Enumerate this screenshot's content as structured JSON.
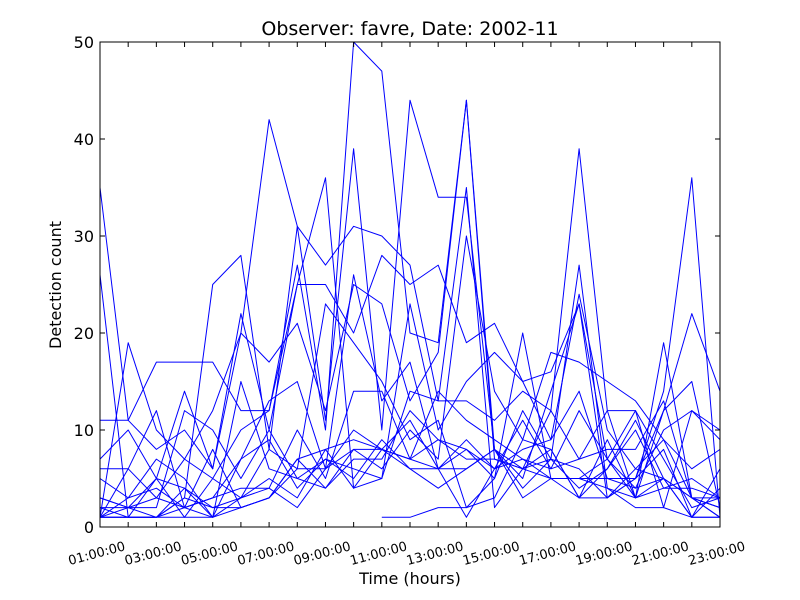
{
  "chart_data": {
    "type": "line",
    "title": "Observer: favre, Date: 2002-11",
    "xlabel": "Time (hours)",
    "ylabel": "Detection count",
    "ylim": [
      0,
      50
    ],
    "yticks": [
      "0",
      "10",
      "20",
      "30",
      "40",
      "50"
    ],
    "x": [
      "01:00:00",
      "02:00:00",
      "03:00:00",
      "04:00:00",
      "05:00:00",
      "06:00:00",
      "07:00:00",
      "08:00:00",
      "09:00:00",
      "10:00:00",
      "11:00:00",
      "12:00:00",
      "13:00:00",
      "14:00:00",
      "15:00:00",
      "16:00:00",
      "17:00:00",
      "18:00:00",
      "19:00:00",
      "20:00:00",
      "21:00:00",
      "22:00:00",
      "23:00:00"
    ],
    "xtick_labels": [
      "01:00:00",
      "03:00:00",
      "05:00:00",
      "07:00:00",
      "09:00:00",
      "11:00:00",
      "13:00:00",
      "15:00:00",
      "17:00:00",
      "19:00:00",
      "21:00:00",
      "23:00:00"
    ],
    "grid": false,
    "line_color": "#0000ff",
    "series": [
      {
        "values": [
          35,
          11,
          17,
          17,
          17,
          12,
          12,
          27,
          10,
          50,
          47,
          20,
          19,
          44,
          7,
          6,
          12,
          39,
          12,
          3,
          5,
          3,
          3
        ]
      },
      {
        "values": [
          26,
          1,
          1,
          3,
          25,
          28,
          8,
          31,
          11,
          39,
          10,
          44,
          34,
          34,
          8,
          3,
          5,
          3,
          3,
          5,
          14,
          36,
          1
        ]
      },
      {
        "values": [
          11,
          11,
          8,
          10,
          6,
          22,
          10,
          25,
          25,
          20,
          28,
          25,
          27,
          19,
          21,
          15,
          9,
          24,
          10,
          6,
          5,
          1,
          1
        ]
      },
      {
        "values": [
          1,
          19,
          10,
          7,
          12,
          20,
          42,
          31,
          27,
          31,
          30,
          27,
          13,
          35,
          2,
          6,
          7,
          27,
          4,
          3,
          12,
          22,
          14
        ]
      },
      {
        "values": [
          7,
          10,
          5,
          14,
          6,
          20,
          17,
          21,
          12,
          25,
          23,
          13,
          18,
          44,
          8,
          5,
          14,
          23,
          7,
          3,
          19,
          3,
          1
        ]
      },
      {
        "values": [
          6,
          6,
          3,
          7,
          5,
          10,
          12,
          25,
          36,
          4,
          5,
          23,
          10,
          15,
          18,
          15,
          16,
          23,
          3,
          5,
          12,
          15,
          2
        ]
      },
      {
        "values": [
          5,
          3,
          7,
          5,
          1,
          15,
          6,
          5,
          4,
          8,
          6,
          10,
          7,
          30,
          14,
          9,
          18,
          17,
          15,
          13,
          9,
          3,
          1
        ]
      },
      {
        "values": [
          3,
          2,
          2,
          12,
          10,
          5,
          10,
          5,
          7,
          6,
          5,
          14,
          13,
          13,
          11,
          14,
          12,
          7,
          8,
          8,
          13,
          3,
          2
        ]
      },
      {
        "values": [
          2,
          2,
          5,
          4,
          1,
          7,
          13,
          15,
          6,
          26,
          13,
          17,
          6,
          6,
          8,
          6,
          5,
          5,
          5,
          5,
          8,
          1,
          6
        ]
      },
      {
        "values": [
          1,
          6,
          12,
          2,
          3,
          4,
          4,
          10,
          5,
          14,
          14,
          7,
          14,
          11,
          9,
          7,
          6,
          12,
          7,
          12,
          2,
          12,
          10
        ]
      },
      {
        "values": [
          1,
          3,
          4,
          2,
          8,
          2,
          3,
          7,
          4,
          7,
          7,
          12,
          9,
          8,
          5,
          12,
          7,
          6,
          3,
          6,
          9,
          6,
          8
        ]
      },
      {
        "values": [
          1,
          1,
          5,
          1,
          5,
          3,
          8,
          6,
          23,
          19,
          15,
          9,
          11,
          2,
          3,
          9,
          8,
          3,
          9,
          3,
          4,
          5,
          3
        ]
      },
      {
        "values": [
          3,
          2,
          3,
          2,
          3,
          7,
          9,
          4,
          7,
          5,
          9,
          6,
          4,
          6,
          8,
          4,
          7,
          4,
          6,
          10,
          4,
          4,
          3
        ]
      },
      {
        "values": [
          1,
          2,
          1,
          3,
          2,
          3,
          5,
          3,
          8,
          9,
          8,
          6,
          6,
          1,
          6,
          7,
          5,
          5,
          7,
          4,
          5,
          3,
          2
        ]
      },
      {
        "values": [
          2,
          1,
          1,
          4,
          2,
          2,
          3,
          6,
          6,
          10,
          8,
          11,
          6,
          9,
          6,
          8,
          9,
          14,
          5,
          4,
          10,
          12,
          9
        ]
      },
      {
        "values": [
          1,
          1,
          1,
          2,
          1,
          3,
          4,
          2,
          6,
          8,
          8,
          7,
          9,
          7,
          7,
          6,
          8,
          3,
          6,
          11,
          5,
          1,
          4
        ]
      },
      {
        "values": [
          1,
          1,
          1,
          1,
          1,
          2,
          3,
          7,
          8,
          4,
          8,
          7,
          6,
          8,
          6,
          11,
          6,
          7,
          12,
          12,
          7,
          2,
          3
        ]
      },
      {
        "values": [
          null,
          null,
          null,
          null,
          null,
          null,
          null,
          null,
          null,
          null,
          1,
          1,
          2,
          2,
          5,
          20,
          5,
          5,
          4,
          2,
          2,
          1,
          1
        ]
      }
    ]
  }
}
